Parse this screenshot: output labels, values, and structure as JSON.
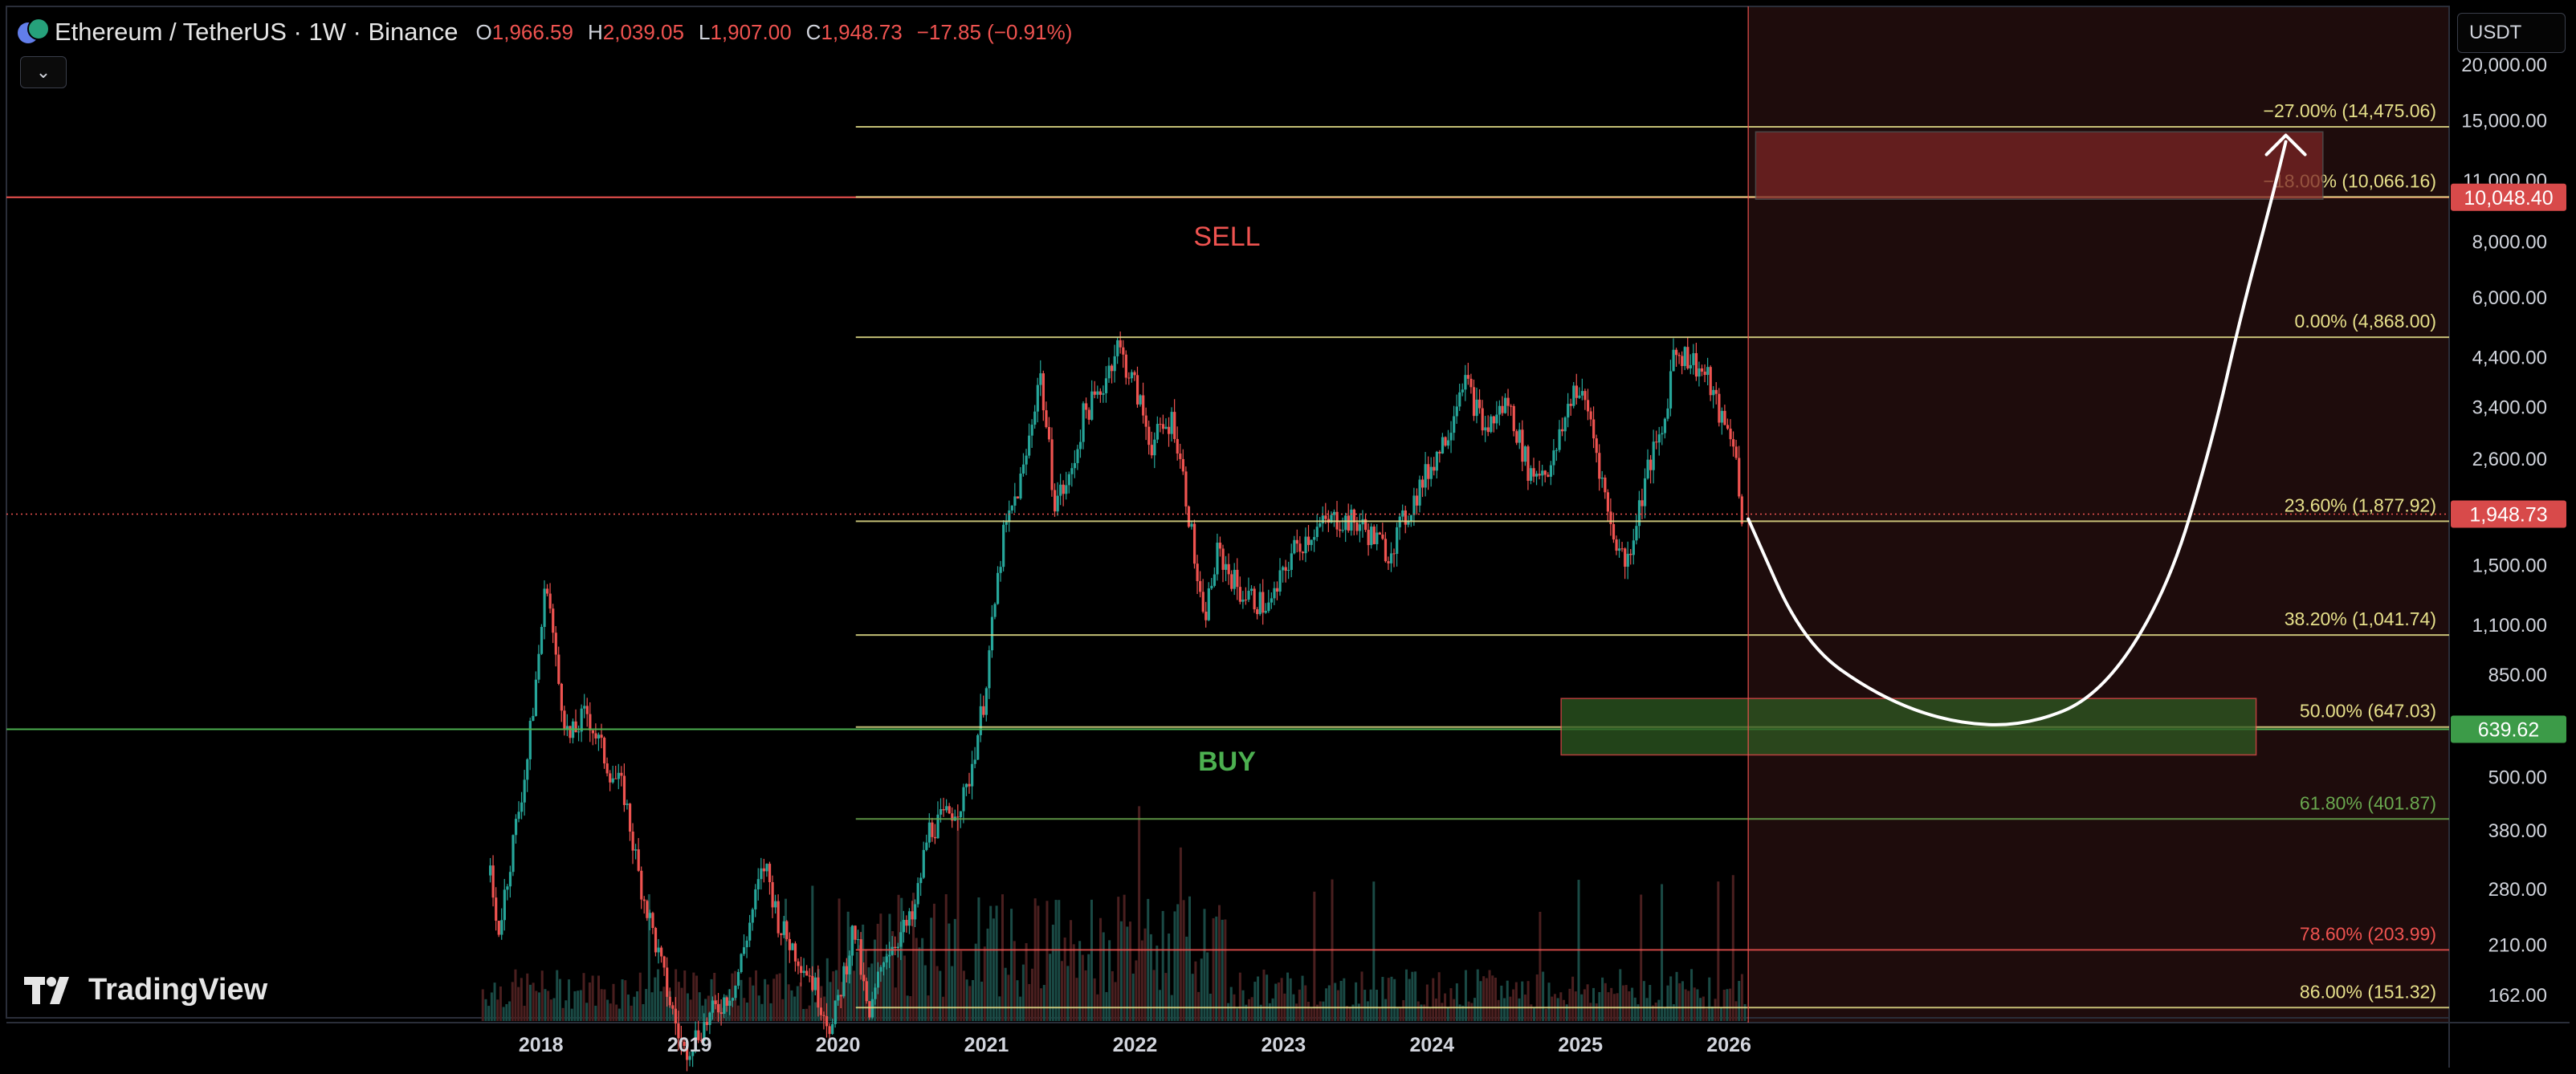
{
  "header": {
    "symbol": "Ethereum / TetherUS · 1W · Binance",
    "o_label": "O",
    "o_value": "1,966.59",
    "h_label": "H",
    "h_value": "2,039.05",
    "l_label": "L",
    "l_value": "1,907.00",
    "c_label": "C",
    "c_value": "1,948.73",
    "change": "−17.85 (−0.91%)",
    "icon": "eth-usdt-coin-icon"
  },
  "controls": {
    "dropdown_icon": "chevron-down-icon",
    "currency": "USDT"
  },
  "brand": {
    "name": "TradingView",
    "icon": "tradingview-logo-icon"
  },
  "colors": {
    "sell": "#ef5350",
    "buy": "#4caf50",
    "fib": "#e6e08a",
    "bull": "#26a69a",
    "bear": "#ef5350",
    "sell_zone": "#1e0c0c"
  },
  "chart_data": {
    "type": "candlestick",
    "title": "",
    "xlabel": "",
    "ylabel": "",
    "y_scale": "log",
    "ylim": [
      140,
      27000
    ],
    "y_ticks": [
      {
        "value": 20000,
        "label": "20,000.00"
      },
      {
        "value": 15000,
        "label": "15,000.00"
      },
      {
        "value": 11000,
        "label": "11,000.00"
      },
      {
        "value": 8000,
        "label": "8,000.00"
      },
      {
        "value": 6000,
        "label": "6,000.00"
      },
      {
        "value": 4400,
        "label": "4,400.00"
      },
      {
        "value": 3400,
        "label": "3,400.00"
      },
      {
        "value": 2600,
        "label": "2,600.00"
      },
      {
        "value": 1500,
        "label": "1,500.00"
      },
      {
        "value": 1100,
        "label": "1,100.00"
      },
      {
        "value": 850,
        "label": "850.00"
      },
      {
        "value": 500,
        "label": "500.00"
      },
      {
        "value": 380,
        "label": "380.00"
      },
      {
        "value": 280,
        "label": "280.00"
      },
      {
        "value": 210,
        "label": "210.00"
      },
      {
        "value": 162,
        "label": "162.00"
      }
    ],
    "xlim": [
      2014.4,
      2030.85
    ],
    "x_ticks": [
      {
        "value": 2018,
        "label": "2018"
      },
      {
        "value": 2019,
        "label": "2019"
      },
      {
        "value": 2020,
        "label": "2020"
      },
      {
        "value": 2021,
        "label": "2021"
      },
      {
        "value": 2022,
        "label": "2022"
      },
      {
        "value": 2023,
        "label": "2023"
      },
      {
        "value": 2024,
        "label": "2024"
      },
      {
        "value": 2025,
        "label": "2025"
      },
      {
        "value": 2026,
        "label": "2026"
      }
    ],
    "price_path": [
      [
        2017.65,
        300
      ],
      [
        2017.7,
        220
      ],
      [
        2017.8,
        350
      ],
      [
        2017.9,
        550
      ],
      [
        2017.97,
        900
      ],
      [
        2018.03,
        1420
      ],
      [
        2018.1,
        850
      ],
      [
        2018.18,
        600
      ],
      [
        2018.3,
        700
      ],
      [
        2018.45,
        520
      ],
      [
        2018.55,
        460
      ],
      [
        2018.65,
        300
      ],
      [
        2018.75,
        220
      ],
      [
        2018.85,
        160
      ],
      [
        2018.95,
        120
      ],
      [
        2019.1,
        140
      ],
      [
        2019.3,
        170
      ],
      [
        2019.45,
        280
      ],
      [
        2019.5,
        320
      ],
      [
        2019.6,
        230
      ],
      [
        2019.8,
        180
      ],
      [
        2019.95,
        135
      ],
      [
        2020.1,
        230
      ],
      [
        2020.2,
        140
      ],
      [
        2020.3,
        200
      ],
      [
        2020.5,
        240
      ],
      [
        2020.6,
        380
      ],
      [
        2020.7,
        400
      ],
      [
        2020.85,
        450
      ],
      [
        2020.97,
        730
      ],
      [
        2021.1,
        1700
      ],
      [
        2021.25,
        2500
      ],
      [
        2021.35,
        4100
      ],
      [
        2021.45,
        2100
      ],
      [
        2021.55,
        2300
      ],
      [
        2021.65,
        3300
      ],
      [
        2021.75,
        3600
      ],
      [
        2021.87,
        4700
      ],
      [
        2022.0,
        3700
      ],
      [
        2022.1,
        2800
      ],
      [
        2022.25,
        3200
      ],
      [
        2022.35,
        2000
      ],
      [
        2022.45,
        1100
      ],
      [
        2022.55,
        1600
      ],
      [
        2022.7,
        1300
      ],
      [
        2022.9,
        1200
      ],
      [
        2023.05,
        1600
      ],
      [
        2023.2,
        1800
      ],
      [
        2023.35,
        1900
      ],
      [
        2023.5,
        1850
      ],
      [
        2023.7,
        1600
      ],
      [
        2023.9,
        2200
      ],
      [
        2024.1,
        3000
      ],
      [
        2024.2,
        4000
      ],
      [
        2024.35,
        3000
      ],
      [
        2024.5,
        3500
      ],
      [
        2024.65,
        2400
      ],
      [
        2024.8,
        2500
      ],
      [
        2024.95,
        3800
      ],
      [
        2025.05,
        3300
      ],
      [
        2025.2,
        1800
      ],
      [
        2025.3,
        1500
      ],
      [
        2025.45,
        2500
      ],
      [
        2025.55,
        3000
      ],
      [
        2025.62,
        4600
      ],
      [
        2025.75,
        4300
      ],
      [
        2025.85,
        3900
      ],
      [
        2025.95,
        3100
      ],
      [
        2026.02,
        2900
      ],
      [
        2026.08,
        1949
      ]
    ],
    "current_price": {
      "value": 1948.73,
      "label": "1,948.73"
    },
    "fib_levels": [
      {
        "value": 14475.06,
        "label": "−27.00% (14,475.06)",
        "color": "#e6e08a"
      },
      {
        "value": 10066.16,
        "label": "−18.00% (10,066.16)",
        "color": "#e6e08a"
      },
      {
        "value": 4868.0,
        "label": "0.00% (4,868.00)",
        "color": "#e6e08a"
      },
      {
        "value": 1877.92,
        "label": "23.60% (1,877.92)",
        "color": "#e6e08a"
      },
      {
        "value": 1041.74,
        "label": "38.20% (1,041.74)",
        "color": "#e6e08a"
      },
      {
        "value": 647.03,
        "label": "50.00% (647.03)",
        "color": "#e6e08a"
      },
      {
        "value": 401.87,
        "label": "61.80% (401.87)",
        "color": "#6aa84f"
      },
      {
        "value": 203.99,
        "label": "78.60% (203.99)",
        "color": "#ef5350"
      },
      {
        "value": 151.32,
        "label": "86.00% (151.32)",
        "color": "#e6e08a"
      }
    ],
    "fib_start_x": 2020.12,
    "horizontal_lines": [
      {
        "value": 10048.4,
        "label": "10,048.40",
        "color": "#ef5350"
      },
      {
        "value": 639.62,
        "label": "639.62",
        "color": "#4caf50"
      }
    ],
    "sell_label": "SELL",
    "buy_label": "BUY",
    "vertical_marker_x": 2026.13,
    "sell_zone": {
      "x": [
        2026.18,
        2030.0
      ],
      "y": [
        9950,
        14100
      ]
    },
    "buy_zone": {
      "x": [
        2024.87,
        2029.55
      ],
      "y": [
        560,
        750
      ]
    },
    "projection": [
      [
        2026.13,
        1900
      ],
      [
        2026.5,
        1000
      ],
      [
        2027.0,
        760
      ],
      [
        2027.5,
        660
      ],
      [
        2028.0,
        650
      ],
      [
        2028.5,
        760
      ],
      [
        2028.95,
        1300
      ],
      [
        2029.25,
        2800
      ],
      [
        2029.45,
        5500
      ],
      [
        2029.65,
        9800
      ],
      [
        2029.75,
        13400
      ]
    ]
  }
}
